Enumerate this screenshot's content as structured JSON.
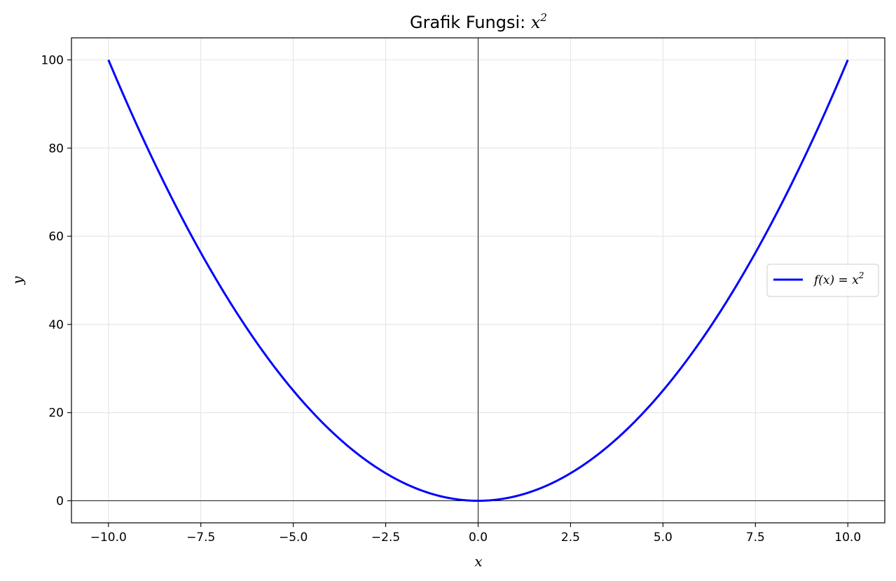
{
  "chart_data": {
    "type": "line",
    "title": "Grafik Fungsi: ",
    "title_math": "x",
    "title_math_sup": "2",
    "xlabel": "x",
    "ylabel": "y",
    "xlim": [
      -11,
      11
    ],
    "ylim": [
      -5,
      105
    ],
    "x_ticks": [
      -10,
      -7.5,
      -5,
      -2.5,
      0,
      2.5,
      5,
      7.5,
      10
    ],
    "x_tick_labels": [
      "−10.0",
      "−7.5",
      "−5.0",
      "−2.5",
      "0.0",
      "2.5",
      "5.0",
      "7.5",
      "10.0"
    ],
    "y_ticks": [
      0,
      20,
      40,
      60,
      80,
      100
    ],
    "y_tick_labels": [
      "0",
      "20",
      "40",
      "60",
      "80",
      "100"
    ],
    "grid": true,
    "axhline_y": 0,
    "axvline_x": 0,
    "legend_position": "center-right",
    "series": [
      {
        "name": "f(x) = x",
        "name_sup": "2",
        "function": "x^2",
        "color": "#0000ff",
        "x": [
          -10,
          -9,
          -8,
          -7,
          -6,
          -5,
          -4,
          -3,
          -2,
          -1,
          0,
          1,
          2,
          3,
          4,
          5,
          6,
          7,
          8,
          9,
          10
        ],
        "values": [
          100,
          81,
          64,
          49,
          36,
          25,
          16,
          9,
          4,
          1,
          0,
          1,
          4,
          9,
          16,
          25,
          36,
          49,
          64,
          81,
          100
        ]
      }
    ]
  }
}
